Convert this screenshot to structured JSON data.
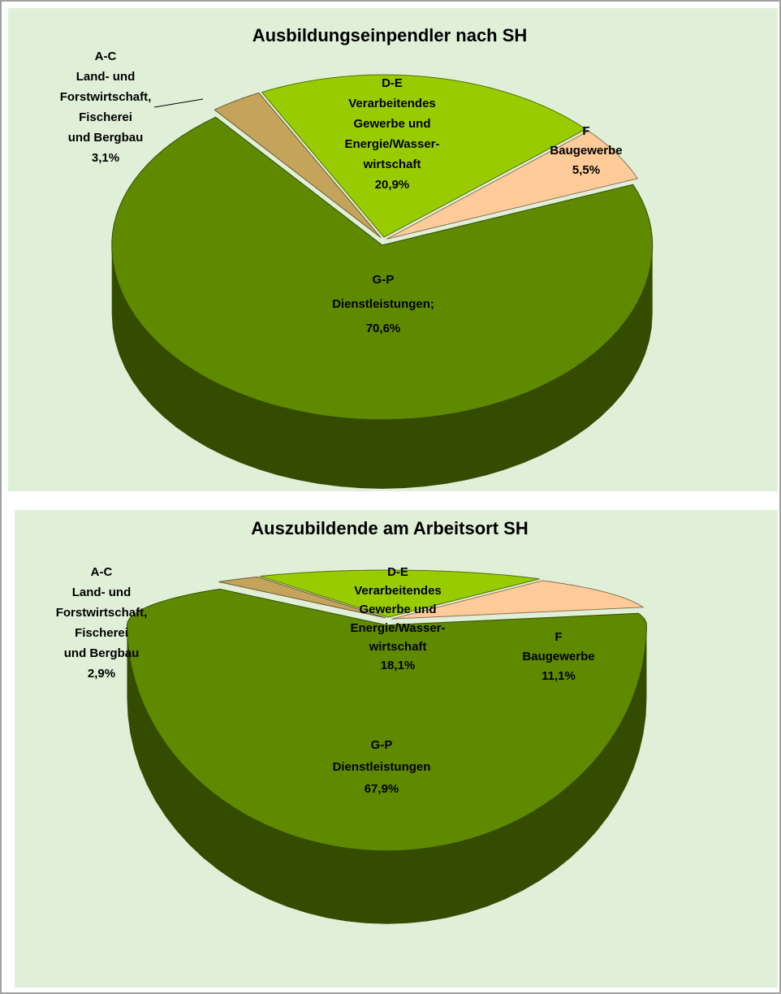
{
  "chart_data": [
    {
      "type": "pie",
      "title": "Ausbildungseinpendler nach SH",
      "categories": [
        [
          "A-C",
          "Land- und",
          "Forstwirtschaft,",
          "Fischerei",
          "und Bergbau"
        ],
        [
          "D-E",
          "Verarbeitendes",
          "Gewerbe und",
          "Energie/Wasser-",
          "wirtschaft"
        ],
        [
          "F",
          "Baugewerbe"
        ],
        [
          "G-P",
          "Dienstleistungen;"
        ]
      ],
      "values": [
        3.1,
        20.9,
        5.5,
        70.6
      ],
      "value_labels": [
        "3,1%",
        "20,9%",
        "5,5%",
        "70,6%"
      ],
      "colors": [
        "#c4a45a",
        "#99cc00",
        "#ffcc99",
        "#5f8a00"
      ]
    },
    {
      "type": "pie",
      "title": "Auszubildende am Arbeitsort SH",
      "categories": [
        [
          "A-C",
          "Land- und",
          "Forstwirtschaft,",
          "Fischerei",
          "und Bergbau"
        ],
        [
          "D-E",
          "Verarbeitendes",
          "Gewerbe und",
          "Energie/Wasser-",
          "wirtschaft"
        ],
        [
          "F",
          "Baugewerbe"
        ],
        [
          "G-P",
          "Dienstleistungen"
        ]
      ],
      "values": [
        2.9,
        18.1,
        11.1,
        67.9
      ],
      "value_labels": [
        "2,9%",
        "18,1%",
        "11,1%",
        "67,9%"
      ],
      "colors": [
        "#c4a45a",
        "#99cc00",
        "#ffcc99",
        "#5f8a00"
      ]
    }
  ]
}
